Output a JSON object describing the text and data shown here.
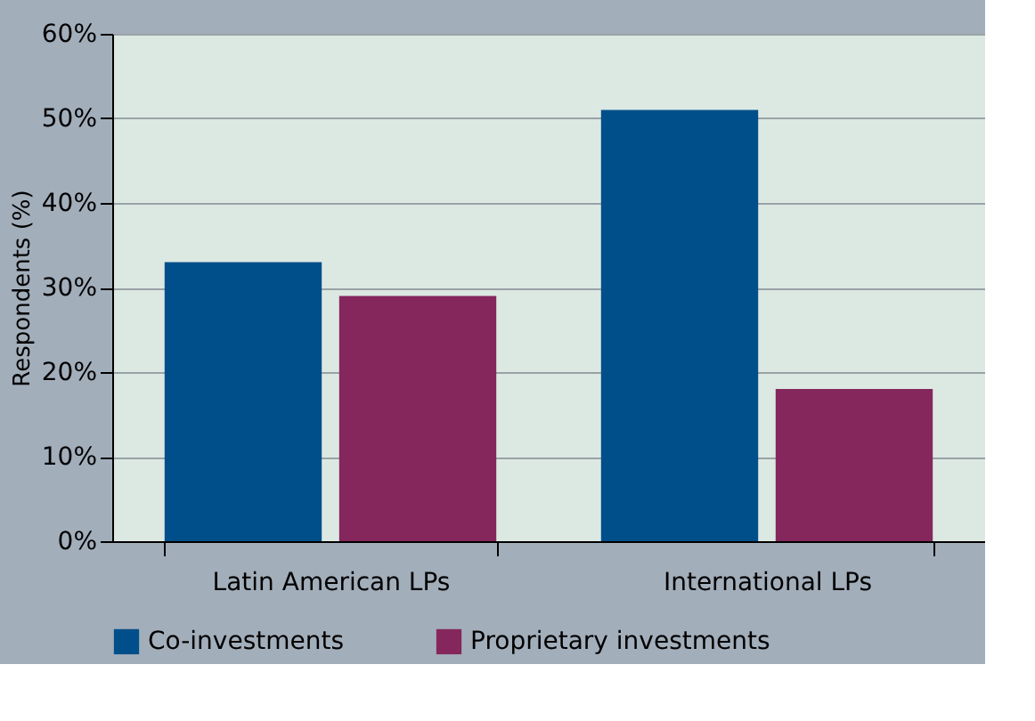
{
  "chart_data": {
    "type": "bar",
    "ylabel": "Respondents (%)",
    "categories": [
      "Latin American LPs",
      "International LPs"
    ],
    "series": [
      {
        "name": "Co-investments",
        "color": "#004f8a",
        "values": [
          33,
          51
        ]
      },
      {
        "name": "Proprietary investments",
        "color": "#85275d",
        "values": [
          29,
          18
        ]
      }
    ],
    "ylim": [
      0,
      60
    ],
    "yticks": [
      {
        "value": 0,
        "label": "0%"
      },
      {
        "value": 10,
        "label": "10%"
      },
      {
        "value": 20,
        "label": "20%"
      },
      {
        "value": 30,
        "label": "30%"
      },
      {
        "value": 40,
        "label": "40%"
      },
      {
        "value": 50,
        "label": "50%"
      },
      {
        "value": 60,
        "label": "60%"
      }
    ],
    "grid": "y",
    "legend": "bottom"
  }
}
